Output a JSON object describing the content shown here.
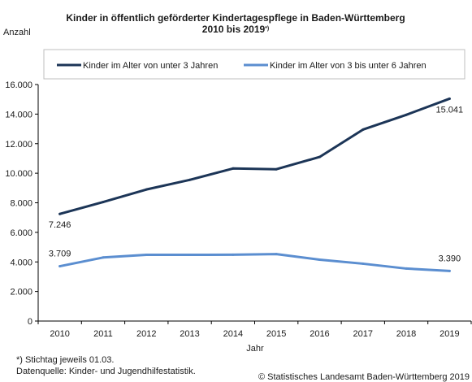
{
  "chart_data": {
    "type": "line",
    "title": "Kinder in öffentlich geförderter Kindertagespflege in Baden-Württemberg",
    "subtitle": "2010 bis 2019",
    "subtitle_marker": "*)",
    "ylabel": "Anzahl",
    "xlabel": "Jahr",
    "ylim": [
      0,
      16000
    ],
    "yticks": [
      0,
      2000,
      4000,
      6000,
      8000,
      10000,
      12000,
      14000,
      16000
    ],
    "ytick_labels": [
      "0",
      "2.000",
      "4.000",
      "6.000",
      "8.000",
      "10.000",
      "12.000",
      "14.000",
      "16.000"
    ],
    "x": [
      "2010",
      "2011",
      "2012",
      "2013",
      "2014",
      "2015",
      "2016",
      "2017",
      "2018",
      "2019"
    ],
    "grid": false,
    "legend_position": "top",
    "series": [
      {
        "name": "Kinder im Alter von unter 3 Jahren",
        "color": "#1c3557",
        "values": [
          7246,
          8050,
          8900,
          9550,
          10320,
          10270,
          11100,
          12950,
          13950,
          15041
        ]
      },
      {
        "name": "Kinder im Alter von 3 bis unter 6 Jahren",
        "color": "#5b8ed0",
        "values": [
          3709,
          4300,
          4480,
          4480,
          4490,
          4530,
          4150,
          3880,
          3550,
          3390
        ]
      }
    ],
    "data_labels": [
      {
        "text": "7.246",
        "series": 0,
        "index": 0,
        "placement": "below"
      },
      {
        "text": "15.041",
        "series": 0,
        "index": 9,
        "placement": "below"
      },
      {
        "text": "3.709",
        "series": 1,
        "index": 0,
        "placement": "above"
      },
      {
        "text": "3.390",
        "series": 1,
        "index": 9,
        "placement": "above"
      }
    ]
  },
  "footnotes": {
    "note": "*) Stichtag jeweils 01.03.",
    "source": "Datenquelle: Kinder- und Jugendhilfestatistik.",
    "copyright": "© Statistisches Landesamt Baden-Württemberg 2019"
  }
}
